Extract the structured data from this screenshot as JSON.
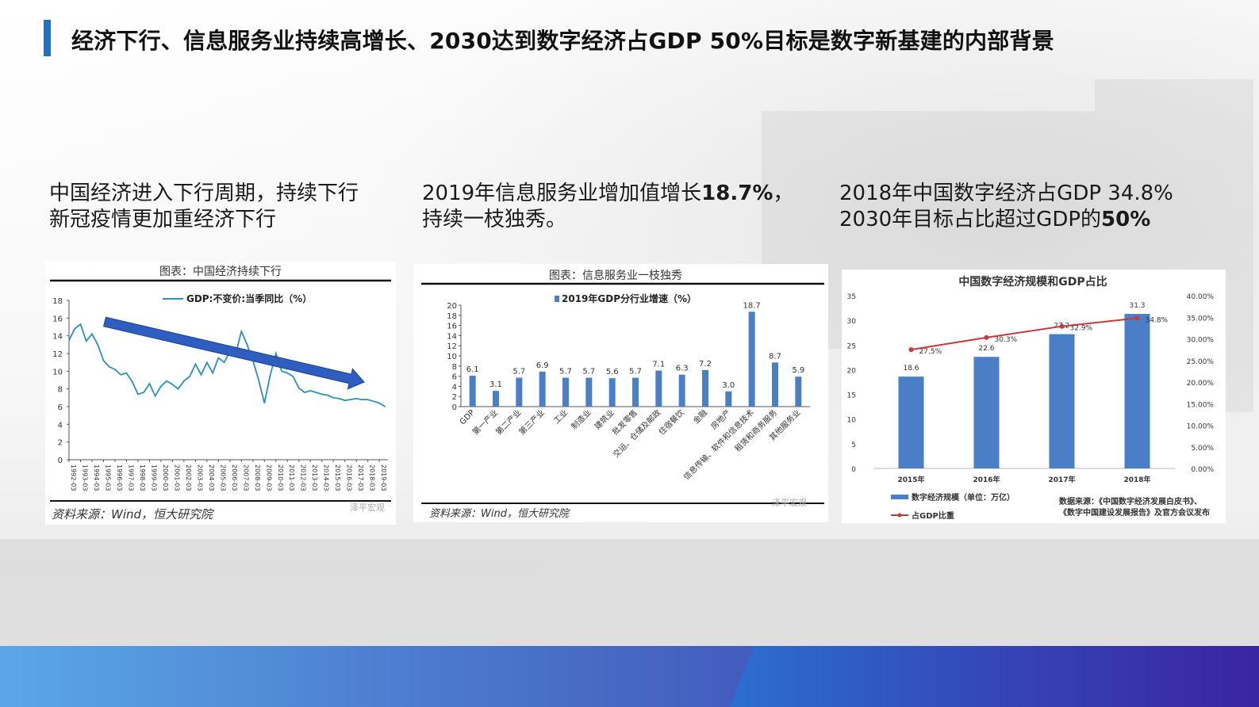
{
  "title": "经济下行、信息服务业持续高增长、2030达到数字经济占GDP 50%目标是数字新基建的内部背景",
  "captions": [
    {
      "line1": "中国经济进入下行周期，持续下行",
      "line2": "新冠疫情更加重经济下行"
    },
    {
      "line1_pre": "2019年信息服务业增加值增长",
      "line1_bold": "18.7%",
      "line1_post": "，",
      "line2": "持续一枝独秀。"
    },
    {
      "line1": "2018年中国数字经济占GDP 34.8%",
      "line2_pre": "2030年目标占比超过GDP的",
      "line2_bold": "50%"
    }
  ],
  "colors": {
    "accent": "#1a73c8",
    "line": "#2a8fc4",
    "bar": "#4a7ec7",
    "bar3": "#4a7ec7",
    "trend": "#c8383a",
    "arrow": "#2e5fc0"
  },
  "chart_data": [
    {
      "type": "line",
      "title": "图表：中国经济持续下行",
      "legend": "GDP:不变价:当季同比（%）",
      "source": "资料来源：Wind，恒大研究院",
      "watermark": "泽平宏观",
      "ylim": [
        0,
        18
      ],
      "yticks": [
        "0",
        "2",
        "4",
        "6",
        "8",
        "10",
        "12",
        "14",
        "16",
        "18"
      ],
      "xticks": [
        "1992-03",
        "1993-03",
        "1994-03",
        "1995-03",
        "1996-03",
        "1997-03",
        "1998-03",
        "1999-03",
        "2000-03",
        "2001-03",
        "2002-03",
        "2003-03",
        "2004-03",
        "2005-03",
        "2006-03",
        "2007-03",
        "2008-03",
        "2009-03",
        "2010-03",
        "2011-03",
        "2012-03",
        "2013-03",
        "2014-03",
        "2015-03",
        "2016-03",
        "2017-03",
        "2018-03",
        "2019-03"
      ],
      "x": [
        1992.0,
        1992.5,
        1993.0,
        1993.5,
        1994.0,
        1994.5,
        1995.0,
        1995.5,
        1996.0,
        1996.5,
        1997.0,
        1997.5,
        1998.0,
        1998.5,
        1999.0,
        1999.5,
        2000.0,
        2000.5,
        2001.0,
        2001.5,
        2002.0,
        2002.5,
        2003.0,
        2003.5,
        2004.0,
        2004.5,
        2005.0,
        2005.5,
        2006.0,
        2006.5,
        2007.0,
        2007.5,
        2008.0,
        2008.5,
        2009.0,
        2009.5,
        2010.0,
        2010.5,
        2011.0,
        2011.5,
        2012.0,
        2012.5,
        2013.0,
        2013.5,
        2014.0,
        2014.5,
        2015.0,
        2015.5,
        2016.0,
        2016.5,
        2017.0,
        2017.5,
        2018.0,
        2018.5,
        2019.0,
        2019.5
      ],
      "values": [
        13.5,
        14.8,
        15.3,
        13.4,
        14.2,
        13.0,
        11.2,
        10.5,
        10.2,
        9.6,
        9.8,
        8.8,
        7.4,
        7.6,
        8.6,
        7.2,
        8.3,
        8.9,
        8.5,
        8.0,
        8.9,
        9.4,
        10.8,
        9.6,
        11.0,
        9.8,
        11.5,
        11.0,
        12.2,
        12.0,
        14.5,
        13.0,
        11.2,
        9.0,
        6.4,
        9.5,
        12.0,
        10.0,
        9.8,
        9.4,
        8.1,
        7.6,
        7.8,
        7.6,
        7.4,
        7.3,
        7.0,
        6.9,
        6.7,
        6.8,
        6.9,
        6.8,
        6.8,
        6.6,
        6.4,
        6.0
      ],
      "annotation": "trend-arrow: downward from 1995 to 2019"
    },
    {
      "type": "bar",
      "title": "图表：信息服务业一枝独秀",
      "legend": "2019年GDP分行业增速（%）",
      "source": "资料来源：Wind，恒大研究院",
      "watermark": "泽平宏观",
      "ylim": [
        0,
        20
      ],
      "yticks": [
        "0",
        "2",
        "4",
        "6",
        "8",
        "10",
        "12",
        "14",
        "16",
        "18",
        "20"
      ],
      "categories": [
        "GDP",
        "第一产业",
        "第二产业",
        "第三产业",
        "工业",
        "制造业",
        "建筑业",
        "批发零售",
        "交运、仓储及邮政",
        "住宿餐饮",
        "金融",
        "房地产",
        "信息传输、软件和信息技术",
        "租赁和商务服务",
        "其他服务业"
      ],
      "values": [
        6.1,
        3.1,
        5.7,
        6.9,
        5.7,
        5.7,
        5.6,
        5.7,
        7.1,
        6.3,
        7.2,
        3.0,
        18.7,
        8.7,
        5.9
      ],
      "labels": [
        "6.1",
        "3.1",
        "5.7",
        "6.9",
        "5.7",
        "5.7",
        "5.6",
        "5.7",
        "7.1",
        "6.3",
        "7.2",
        "3.0",
        "18.7",
        "8.7",
        "5.9"
      ]
    },
    {
      "type": "bar",
      "title": "中国数字经济规模和GDP占比",
      "categories": [
        "2015年",
        "2016年",
        "2017年",
        "2018年"
      ],
      "series": [
        {
          "name": "数字经济规模（单位：万亿）",
          "values": [
            18.6,
            22.6,
            27.2,
            31.3
          ],
          "labels": [
            "18.6",
            "22.6",
            "27.2",
            "31.3"
          ]
        },
        {
          "name": "占GDP比重",
          "values": [
            27.5,
            30.3,
            32.9,
            34.8
          ],
          "labels": [
            "27.5%",
            "30.3%",
            "32.9%",
            "34.8%"
          ]
        }
      ],
      "ylim": [
        0,
        35
      ],
      "yticks": [
        "0",
        "5",
        "10",
        "15",
        "20",
        "25",
        "30",
        "35"
      ],
      "y2lim": [
        0,
        40
      ],
      "y2ticks": [
        "0.00%",
        "5.00%",
        "10.00%",
        "15.00%",
        "20.00%",
        "25.00%",
        "30.00%",
        "35.00%",
        "40.00%"
      ],
      "source_line1": "数据来源：《中国数字经济发展白皮书》、",
      "source_line2": "《数字中国建设发展报告》及官方会议发布"
    }
  ]
}
